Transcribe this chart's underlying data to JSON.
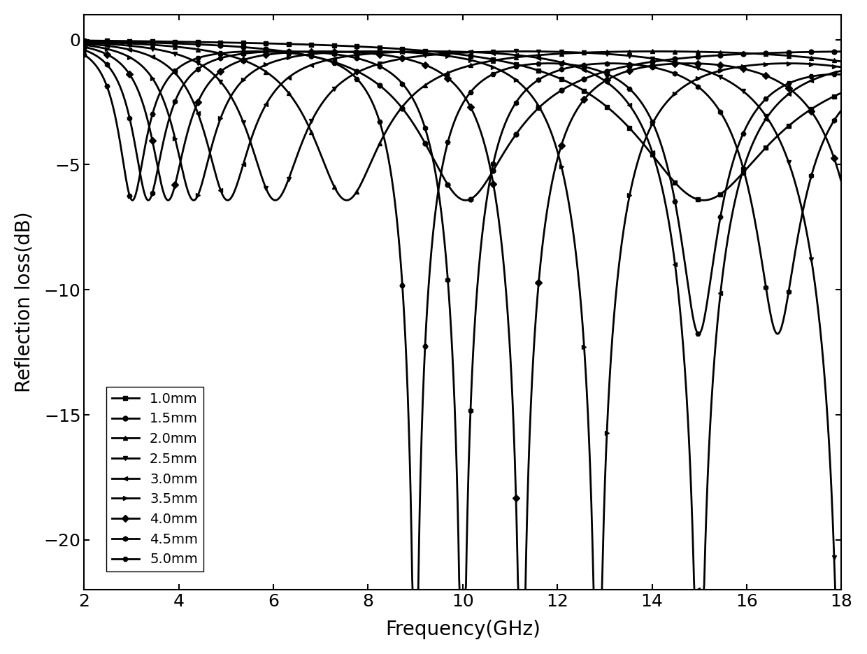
{
  "title": "",
  "xlabel": "Frequency(GHz)",
  "ylabel": "Reflection loss(dB)",
  "xlim": [
    2,
    18
  ],
  "ylim": [
    -22,
    1
  ],
  "xticks": [
    2,
    4,
    6,
    8,
    10,
    12,
    14,
    16,
    18
  ],
  "yticks": [
    0,
    -5,
    -10,
    -15,
    -20
  ],
  "thicknesses": [
    1.0,
    1.5,
    2.0,
    2.5,
    3.0,
    3.5,
    4.0,
    4.5,
    5.0
  ],
  "freq_start": 2,
  "freq_end": 18,
  "freq_points": 2000,
  "markers": [
    "s",
    "o",
    "^",
    "v",
    "<",
    ">",
    "D",
    "h",
    "H"
  ],
  "markersize": 5,
  "linewidth": 2.0,
  "color": "#000000",
  "legend_labels": [
    "1.0mm",
    "1.5mm",
    "2.0mm",
    "2.5mm",
    "3.0mm",
    "3.5mm",
    "4.0mm",
    "4.5mm",
    "5.0mm"
  ],
  "legend_loc": "lower left",
  "background_color": "#ffffff",
  "markevery": 60,
  "eps_r": 15.0,
  "eps_i": 1.5,
  "mu_r": 1.0,
  "mu_i": 0.15
}
